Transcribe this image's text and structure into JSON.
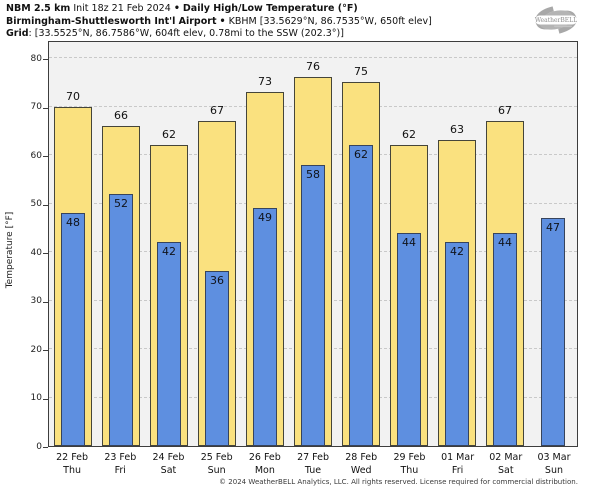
{
  "header": {
    "model": "NBM 2.5 km",
    "init": "Init 18z 21 Feb 2024",
    "sep": "•",
    "product": "Daily High/Low Temperature (°F)",
    "station_name": "Birmingham-Shuttlesworth Int'l Airport",
    "station_details": "KBHM [33.5629°N, 86.7535°W, 650ft elev]",
    "grid_label": "Grid",
    "grid_details": ": [33.5525°N, 86.7586°W, 604ft elev, 0.78mi to the SSW (202.3°)]"
  },
  "logo": {
    "text": "WeatherBELL",
    "color": "#9a9a9a"
  },
  "chart_data": {
    "type": "bar",
    "title": "NBM 2.5 km Daily High/Low Temperature (°F) — KBHM",
    "categories": [
      {
        "date": "22 Feb",
        "day": "Thu"
      },
      {
        "date": "23 Feb",
        "day": "Fri"
      },
      {
        "date": "24 Feb",
        "day": "Sat"
      },
      {
        "date": "25 Feb",
        "day": "Sun"
      },
      {
        "date": "26 Feb",
        "day": "Mon"
      },
      {
        "date": "27 Feb",
        "day": "Tue"
      },
      {
        "date": "28 Feb",
        "day": "Wed"
      },
      {
        "date": "29 Feb",
        "day": "Thu"
      },
      {
        "date": "01 Mar",
        "day": "Fri"
      },
      {
        "date": "02 Mar",
        "day": "Sat"
      },
      {
        "date": "03 Mar",
        "day": "Sun"
      }
    ],
    "series": [
      {
        "name": "Daily High",
        "color": "#fae17f",
        "values": [
          70,
          66,
          62,
          67,
          73,
          76,
          75,
          62,
          63,
          67,
          null
        ]
      },
      {
        "name": "Daily Low",
        "color": "#5e8fe0",
        "values": [
          48,
          52,
          42,
          36,
          49,
          58,
          62,
          44,
          42,
          44,
          47
        ]
      }
    ],
    "xlabel": "",
    "ylabel": "Temperature [°F]",
    "ylim": [
      0,
      80
    ],
    "yticks": [
      0,
      10,
      20,
      30,
      40,
      50,
      60,
      70,
      80
    ],
    "grid": "horizontal-dashed",
    "legend": "none",
    "plot_background": "#f2f2f2"
  },
  "footer": {
    "copyright": "© 2024 WeatherBELL Analytics, LLC. All rights reserved. License required for commercial distribution."
  }
}
